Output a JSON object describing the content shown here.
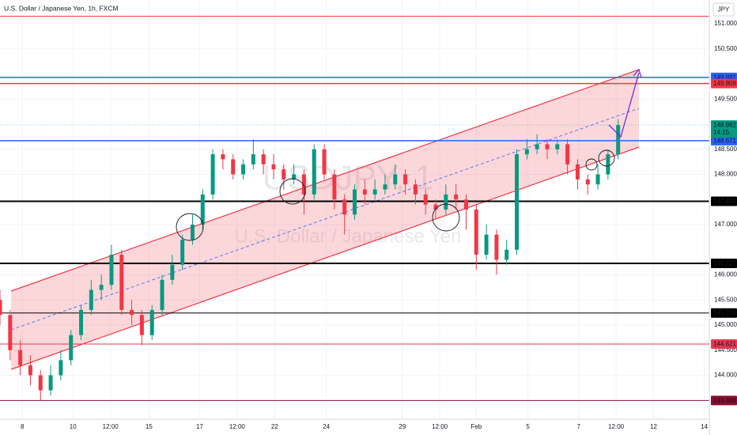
{
  "chart_data": {
    "type": "candlestick",
    "title": "U.S. Dollar / Japanese Yen, 1h, FXCM",
    "watermark_symbol": "USDJPY, 1",
    "watermark_name": "U.S. Dollar / Japanese Yen",
    "currency": "JPY",
    "countdown": "14:15",
    "up_color": "#089981",
    "down_color": "#f23645",
    "x": [
      0,
      1,
      2,
      3,
      4,
      5,
      6,
      7,
      8,
      9,
      10,
      11,
      12,
      13,
      14,
      15,
      16,
      17,
      18,
      19,
      20,
      21,
      22,
      23,
      24,
      25,
      26,
      27,
      28,
      29,
      30,
      31,
      32,
      33,
      34,
      35,
      36,
      37,
      38,
      39,
      40,
      41,
      42,
      43,
      44,
      45,
      46,
      47,
      48,
      49,
      50,
      51,
      52,
      53,
      54,
      55,
      56,
      57,
      58,
      59,
      60,
      61
    ],
    "open": [
      145.5,
      145.2,
      144.5,
      144.2,
      144.0,
      143.7,
      144.0,
      144.3,
      144.8,
      145.3,
      145.7,
      145.8,
      146.4,
      145.3,
      145.2,
      144.8,
      145.3,
      145.9,
      146.2,
      146.7,
      147.0,
      147.6,
      148.4,
      148.3,
      148.0,
      148.2,
      148.4,
      148.2,
      148.1,
      147.9,
      148.0,
      147.6,
      148.5,
      148.0,
      147.5,
      147.2,
      147.7,
      147.6,
      147.7,
      147.8,
      148.0,
      147.8,
      147.6,
      147.4,
      147.3,
      147.6,
      147.5,
      147.3,
      146.4,
      146.8,
      146.3,
      146.5,
      148.4,
      148.5,
      148.6,
      148.5,
      148.6,
      148.2,
      147.9,
      147.8,
      148.0,
      148.4
    ],
    "high": [
      145.7,
      145.3,
      144.7,
      144.4,
      144.1,
      144.2,
      144.5,
      144.9,
      145.4,
      145.9,
      146.0,
      146.6,
      146.5,
      145.5,
      145.3,
      145.4,
      146.0,
      146.4,
      146.8,
      147.2,
      147.7,
      148.5,
      148.5,
      148.4,
      148.3,
      148.7,
      148.5,
      148.4,
      148.2,
      148.2,
      148.1,
      148.6,
      148.6,
      148.1,
      147.6,
      147.8,
      147.9,
      147.9,
      148.0,
      148.2,
      148.1,
      147.9,
      147.7,
      147.5,
      147.8,
      147.8,
      147.6,
      147.4,
      147.0,
      146.9,
      146.7,
      148.5,
      148.7,
      148.8,
      148.7,
      148.7,
      148.7,
      148.3,
      148.0,
      148.2,
      148.5,
      149.1
    ],
    "low": [
      145.0,
      144.3,
      144.0,
      143.8,
      143.5,
      143.6,
      143.9,
      144.2,
      144.7,
      145.2,
      145.5,
      145.7,
      145.2,
      145.0,
      144.6,
      144.7,
      145.2,
      145.8,
      146.1,
      146.6,
      146.9,
      147.5,
      148.1,
      147.9,
      147.9,
      148.1,
      148.0,
      147.9,
      147.7,
      147.8,
      147.2,
      147.5,
      147.9,
      147.3,
      146.8,
      147.1,
      147.4,
      147.5,
      147.6,
      147.7,
      147.6,
      147.4,
      147.2,
      147.1,
      147.2,
      147.3,
      146.9,
      146.1,
      146.3,
      146.0,
      146.2,
      146.4,
      148.3,
      148.4,
      148.3,
      148.4,
      148.0,
      147.7,
      147.6,
      147.7,
      147.9,
      148.3
    ],
    "close": [
      145.2,
      144.5,
      144.2,
      144.0,
      143.7,
      144.0,
      144.3,
      144.8,
      145.3,
      145.7,
      145.8,
      146.4,
      145.3,
      145.2,
      144.8,
      145.3,
      145.9,
      146.2,
      146.7,
      147.0,
      147.6,
      148.4,
      148.3,
      148.0,
      148.2,
      148.4,
      148.2,
      148.1,
      147.9,
      148.0,
      147.6,
      148.5,
      148.0,
      147.5,
      147.2,
      147.7,
      147.6,
      147.7,
      147.8,
      148.0,
      147.8,
      147.6,
      147.4,
      147.3,
      147.6,
      147.5,
      147.3,
      146.4,
      146.8,
      146.3,
      146.5,
      148.4,
      148.5,
      148.6,
      148.5,
      148.6,
      148.2,
      147.9,
      147.8,
      148.0,
      148.4,
      148.982
    ],
    "xlim": [
      0,
      70
    ],
    "xticks": [
      {
        "value": 2.2,
        "label": "8"
      },
      {
        "value": 7.2,
        "label": "10"
      },
      {
        "value": 10.9,
        "label": "12:00"
      },
      {
        "value": 14.7,
        "label": "15"
      },
      {
        "value": 19.7,
        "label": "17"
      },
      {
        "value": 23.4,
        "label": "12:00"
      },
      {
        "value": 27.1,
        "label": "22"
      },
      {
        "value": 32.2,
        "label": "24"
      },
      {
        "value": 39.7,
        "label": "29"
      },
      {
        "value": 43.4,
        "label": "12:00"
      },
      {
        "value": 47,
        "label": "Feb"
      },
      {
        "value": 52.1,
        "label": "5"
      },
      {
        "value": 57.1,
        "label": "7"
      },
      {
        "value": 60.8,
        "label": "12:00"
      },
      {
        "value": 64.5,
        "label": "12"
      },
      {
        "value": 69.5,
        "label": "14"
      }
    ],
    "ylim": [
      143.283,
      151.472
    ],
    "yticks": [
      {
        "value": 151,
        "label": "151.000"
      },
      {
        "value": 150.5,
        "label": "150.500"
      },
      {
        "value": 149.5,
        "label": "149.500"
      },
      {
        "value": 148.5,
        "label": "148.500"
      },
      {
        "value": 148,
        "label": "148.000"
      },
      {
        "value": 147,
        "label": "147.000"
      },
      {
        "value": 146,
        "label": "146.000"
      },
      {
        "value": 145.5,
        "label": "145.500"
      },
      {
        "value": 145,
        "label": "145.000"
      },
      {
        "value": 144.5,
        "label": "144.500"
      },
      {
        "value": 144,
        "label": "144.000"
      }
    ],
    "grid": true,
    "lines": [
      {
        "value": 151.15,
        "color": "#f23645"
      }
    ],
    "levels": [
      {
        "value": 149.931,
        "color": "#2962ff",
        "width": 1.5
      },
      {
        "value": 149.809,
        "color": "#f23645",
        "width": 1.5
      },
      {
        "value": 148.671,
        "color": "#2962ff",
        "width": 1.5
      },
      {
        "value": 147.465,
        "color": "#000000",
        "width": 2
      },
      {
        "value": 146.227,
        "color": "#000000",
        "width": 2
      },
      {
        "value": 145.239,
        "color": "#000000",
        "width": 1
      },
      {
        "value": 144.621,
        "color": "#e53950",
        "width": 1
      },
      {
        "value": 143.498,
        "color": "#880e2f",
        "width": 1
      }
    ],
    "last_price": 148.982,
    "last_color": "#089981"
  }
}
